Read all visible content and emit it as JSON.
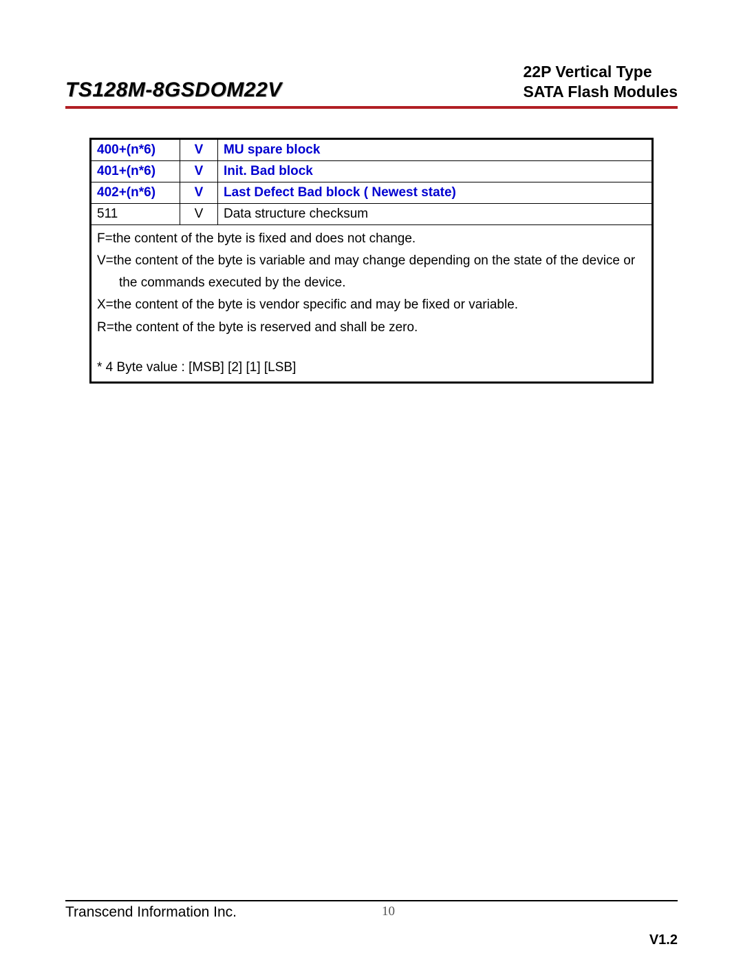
{
  "header": {
    "title_left": "TS128M-8GSDOM22V",
    "title_right_line1": "22P Vertical Type",
    "title_right_line2": "SATA Flash Modules"
  },
  "table": {
    "rows": [
      {
        "addr": "400+(n*6)",
        "flag": "V",
        "desc": "MU spare block",
        "highlight": true
      },
      {
        "addr": "401+(n*6)",
        "flag": "V",
        "desc": "Init. Bad block",
        "highlight": true
      },
      {
        "addr": "402+(n*6)",
        "flag": "V",
        "desc": "Last Defect Bad block ( Newest state)",
        "highlight": true
      },
      {
        "addr": "511",
        "flag": "V",
        "desc": "Data structure checksum",
        "highlight": false
      }
    ],
    "legend": {
      "f": "F=the content of the byte is fixed and does not change.",
      "v_line1": "V=the content of the byte is variable and may change depending on the state of the device or",
      "v_line2": "the commands executed by the device.",
      "x": "X=the content of the byte is vendor specific and may be fixed or variable.",
      "r": "R=the content of the byte is reserved and shall be zero.",
      "note": "* 4 Byte value : [MSB] [2] [1] [LSB]"
    }
  },
  "footer": {
    "company": "Transcend Information Inc.",
    "page": "10",
    "version": "V1.2"
  },
  "colors": {
    "accent_red": "#b11f24",
    "link_blue": "#0000d0"
  }
}
